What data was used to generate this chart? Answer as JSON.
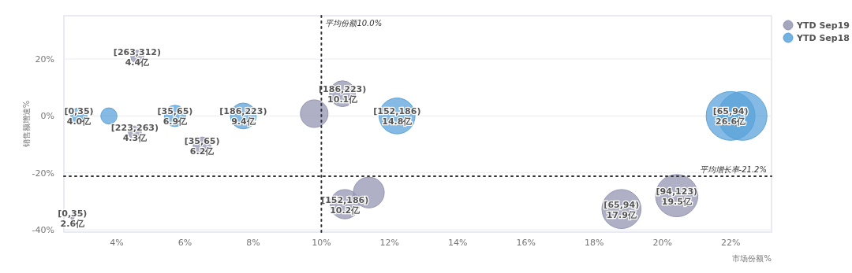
{
  "chart_data": {
    "type": "bubble",
    "xlabel": "市场份额%",
    "ylabel": "销售额增速%",
    "xlim": [
      2.45,
      23.2
    ],
    "ylim": [
      -40.8,
      35.2
    ],
    "xticks": [
      {
        "value": 4,
        "label": "4%"
      },
      {
        "value": 6,
        "label": "6%"
      },
      {
        "value": 8,
        "label": "8%"
      },
      {
        "value": 10,
        "label": "10%"
      },
      {
        "value": 12,
        "label": "12%"
      },
      {
        "value": 14,
        "label": "14%"
      },
      {
        "value": 16,
        "label": "16%"
      },
      {
        "value": 18,
        "label": "18%"
      },
      {
        "value": 20,
        "label": "20%"
      },
      {
        "value": 22,
        "label": "22%"
      }
    ],
    "yticks": [
      {
        "value": -40,
        "label": "-40%"
      },
      {
        "value": -20,
        "label": "-20%"
      },
      {
        "value": 0,
        "label": "0%"
      },
      {
        "value": 20,
        "label": "20%"
      }
    ],
    "grid": "y",
    "legend": "top right",
    "marker": "circle",
    "ref_lines": [
      {
        "axis": "x",
        "value": 10,
        "label": "平均份额10.0%",
        "color": "#333333",
        "line_style": "dotted"
      },
      {
        "axis": "y",
        "value": -21.2,
        "label": "平均增长率-21.2%",
        "color": "#333333",
        "line_style": "dotted"
      }
    ],
    "series": [
      {
        "name": "YTD Sep19",
        "color": "#9496b2",
        "x": [
          4.6,
          4.53,
          6.5,
          2.7,
          9.79,
          10.62,
          10.69,
          11.39,
          18.8,
          20.42
        ],
        "values": [
          20.8,
          -5.8,
          -10.5,
          -35.7,
          0.8,
          7.8,
          -31.0,
          -26.9,
          -32.7,
          -28.0
        ],
        "sizes": [
          0.07,
          0.07,
          0.13,
          0.005,
          0.32,
          0.28,
          0.36,
          0.4,
          0.64,
          0.75
        ],
        "value_labels": [
          "[263,312)\n4.4亿",
          "[223,263)\n4.3亿",
          "[35,65)\n6.2亿",
          "[0,35)\n2.6亿",
          null,
          "[186,223)\n10.1亿",
          "[152,186)\n10.2亿",
          null,
          "[65,94)\n17.9亿",
          "[94,123)\n19.5亿"
        ]
      },
      {
        "name": "YTD Sep18",
        "color": "#5ba3da",
        "x": [
          2.89,
          3.77,
          5.71,
          7.71,
          12.22,
          22.0,
          22.35
        ],
        "values": [
          0,
          0,
          0,
          0,
          0,
          0,
          0
        ],
        "sizes": [
          0.11,
          0.11,
          0.19,
          0.28,
          0.54,
          1,
          1
        ],
        "value_labels": [
          "[0,35)\n4.0亿",
          null,
          "[35,65)\n6.9亿",
          "[186,223)\n9.4亿",
          "[152,186)\n14.8亿",
          "[65,94)\n26.6亿",
          null
        ]
      }
    ]
  }
}
